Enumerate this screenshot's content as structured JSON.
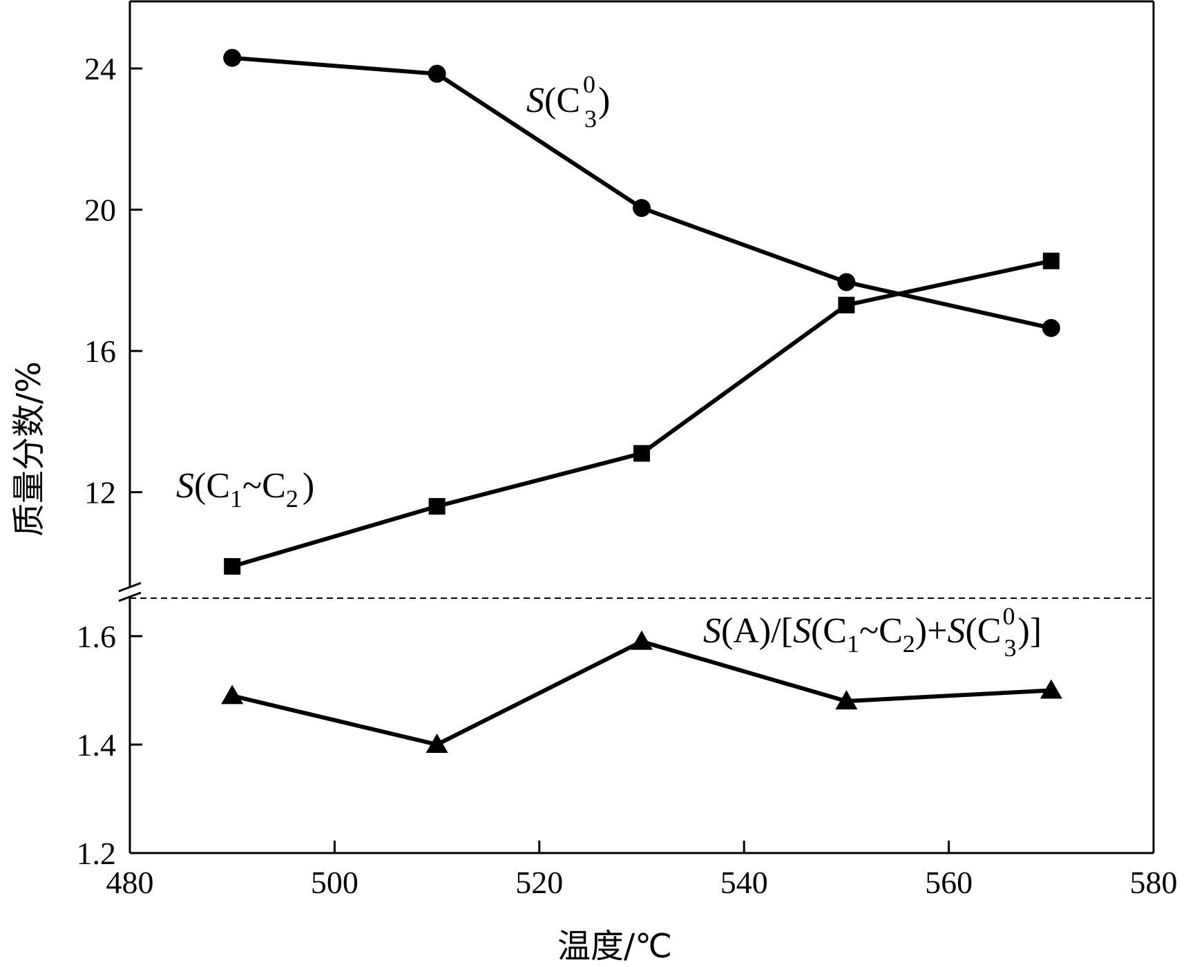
{
  "chart_data": {
    "type": "line",
    "xlabel": "温度/℃",
    "ylabel": "质量分数/%",
    "xlim": [
      480,
      580
    ],
    "x_ticks": [
      "480",
      "500",
      "520",
      "540",
      "560",
      "580"
    ],
    "upper_panel": {
      "ylim": [
        9.0,
        25.9
      ],
      "y_ticks": [
        "12",
        "16",
        "20",
        "24"
      ],
      "series": [
        {
          "id": "c3",
          "marker": "circle",
          "label": {
            "pre": "S(C",
            "sub": "3",
            "sup": "0",
            "post": ")"
          },
          "x": [
            490,
            510,
            530,
            550,
            570
          ],
          "values": [
            24.3,
            23.85,
            20.05,
            17.95,
            16.65
          ]
        },
        {
          "id": "c1c2",
          "marker": "square",
          "label": {
            "pre": "S(C",
            "sub1": "1",
            "mid": "~C",
            "sub2": "2",
            "post": ")"
          },
          "x": [
            490,
            510,
            530,
            550,
            570
          ],
          "values": [
            9.9,
            11.6,
            13.1,
            17.3,
            18.55
          ]
        }
      ]
    },
    "lower_panel": {
      "ylim": [
        1.2,
        1.67
      ],
      "y_ticks": [
        "1.2",
        "1.4",
        "1.6"
      ],
      "series": [
        {
          "id": "ratio",
          "marker": "triangle",
          "label": {
            "pre": "S(A)/[S(C",
            "sub1": "1",
            "mid": "~C",
            "sub2": "2",
            "mid2": ")+S(C",
            "sub3": "3",
            "sup3": "0",
            "post": ")]"
          },
          "x": [
            490,
            510,
            530,
            550,
            570
          ],
          "values": [
            1.49,
            1.4,
            1.59,
            1.48,
            1.5
          ]
        }
      ]
    }
  }
}
